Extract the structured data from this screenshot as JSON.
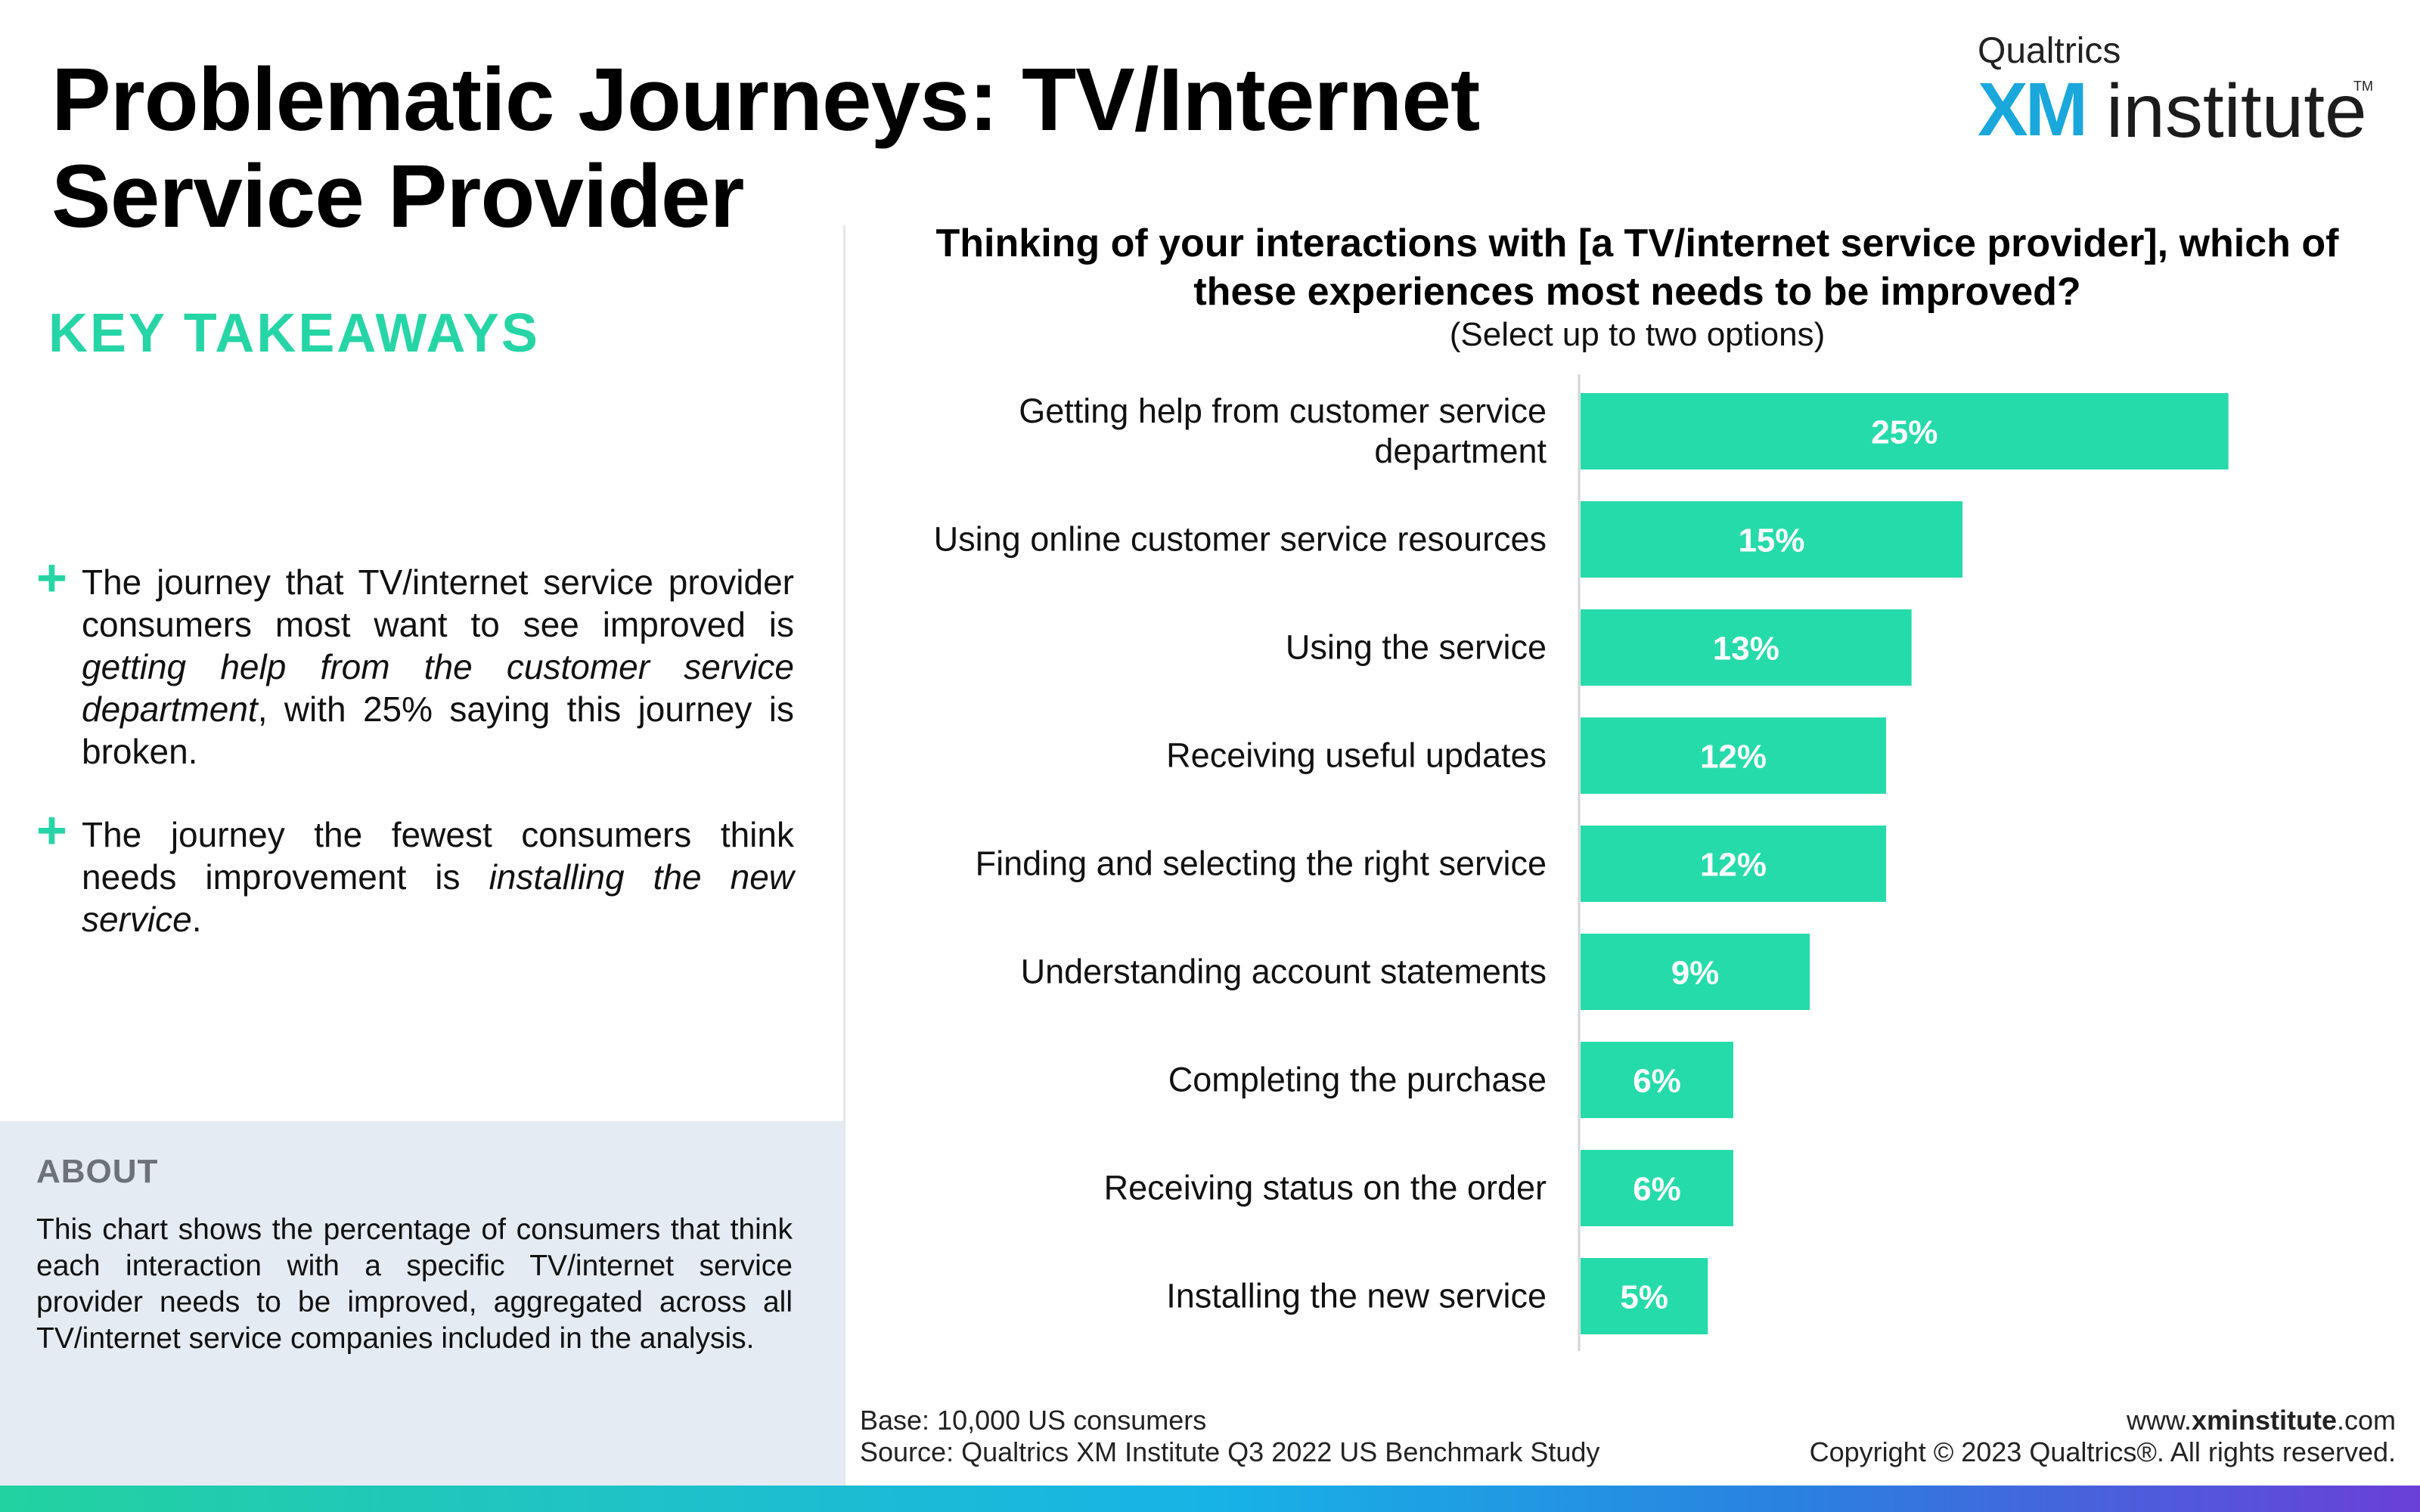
{
  "header": {
    "title_line1": "Problematic Journeys: TV/Internet",
    "title_line2": "Service Provider"
  },
  "logo": {
    "brand": "Qualtrics",
    "xm": "XM",
    "institute": "institute",
    "tm": "TM"
  },
  "takeaways": {
    "heading": "KEY TAKEAWAYS",
    "bullet1": {
      "pre": "The journey that TV/internet service provider consumers most want to see improved is ",
      "em": "getting help from the customer service department",
      "post": ", with 25% saying this journey is broken."
    },
    "bullet2": {
      "pre": "The journey the fewest consumers think needs improvement is ",
      "em": "installing the new service",
      "post": "."
    }
  },
  "about": {
    "heading": "ABOUT",
    "text": "This chart shows the percentage of consumers that think each interaction with a specific TV/internet service provider needs to be improved, aggregated across all TV/internet service companies included in the analysis."
  },
  "chart_data": {
    "type": "bar",
    "orientation": "horizontal",
    "title": "Thinking of your interactions with [a TV/internet service provider], which of these experiences most needs to be improved?",
    "subtitle": "(Select up to two options)",
    "categories": [
      "Getting help from customer service department",
      "Using online customer service resources",
      "Using the service",
      "Receiving useful updates",
      "Finding and selecting the right service",
      "Understanding account statements",
      "Completing the purchase",
      "Receiving status on the order",
      "Installing the new service"
    ],
    "values": [
      25,
      15,
      13,
      12,
      12,
      9,
      6,
      6,
      5
    ],
    "value_labels": [
      "25%",
      "15%",
      "13%",
      "12%",
      "12%",
      "9%",
      "6%",
      "6%",
      "5%"
    ],
    "bar_color": "#26dbaa",
    "xlim": [
      0,
      30
    ],
    "grid": false,
    "legend": "none"
  },
  "footer": {
    "base": "Base: 10,000 US consumers",
    "source": "Source: Qualtrics XM Institute Q3 2022 US Benchmark Study",
    "url_prefix": "www.",
    "url_bold": "xminstitute",
    "url_suffix": ".com",
    "copyright": "Copyright © 2023 Qualtrics®. All rights reserved."
  }
}
